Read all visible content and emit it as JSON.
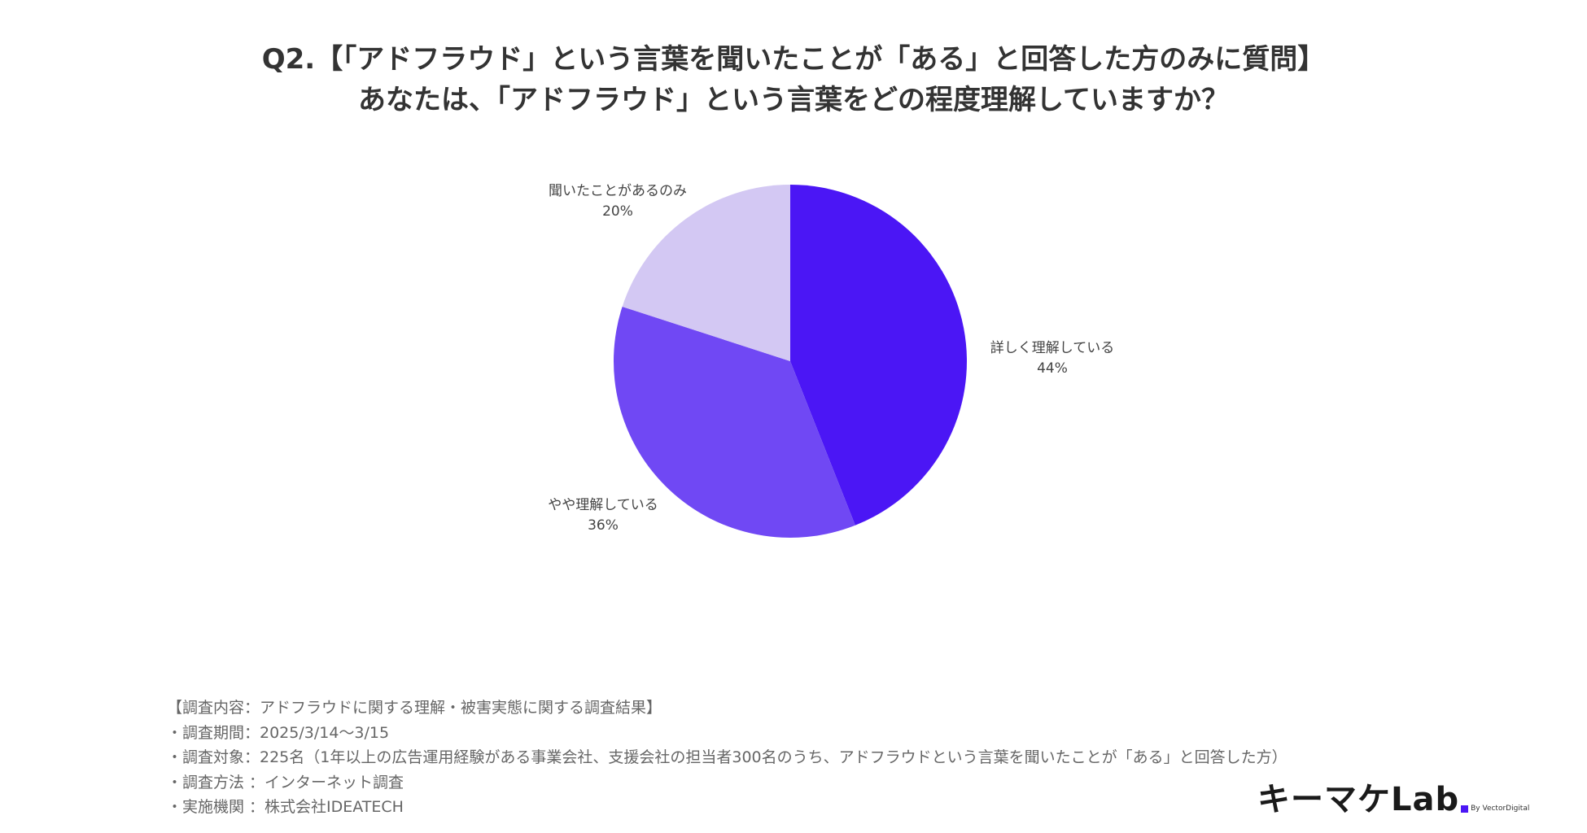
{
  "title": {
    "line1": "Q2.【「アドフラウド」という言葉を聞いたことが「ある」と回答した方のみに質問】",
    "line2": "あなたは、「アドフラウド」という言葉をどの程度理解していますか？"
  },
  "chart_data": {
    "type": "pie",
    "title": "",
    "start_angle": "12 o'clock",
    "direction": "clockwise",
    "slices": [
      {
        "label": "詳しく理解している",
        "value": 44,
        "value_label": "44%",
        "color": "#4b16f5"
      },
      {
        "label": "やや理解している",
        "value": 36,
        "value_label": "36%",
        "color": "#7048f4"
      },
      {
        "label": "聞いたことがあるのみ",
        "value": 20,
        "value_label": "20%",
        "color": "#d3c8f3"
      }
    ]
  },
  "notes": {
    "line1": "【調査内容：アドフラウドに関する理解・被害実態に関する調査結果】",
    "line2": "・調査期間：2025/3/14〜3/15",
    "line3": "・調査対象：225名（1年以上の広告運用経験がある事業会社、支援会社の担当者300名のうち、アドフラウドという言葉を聞いたことが「ある」と回答した方）",
    "line4": "・調査方法 ：インターネット調査",
    "line5": "・実施機関 ：株式会社IDEATECH"
  },
  "logo": {
    "main": "キーマケLab",
    "sub": "By VectorDigital",
    "accent_color": "#4b16f5"
  }
}
